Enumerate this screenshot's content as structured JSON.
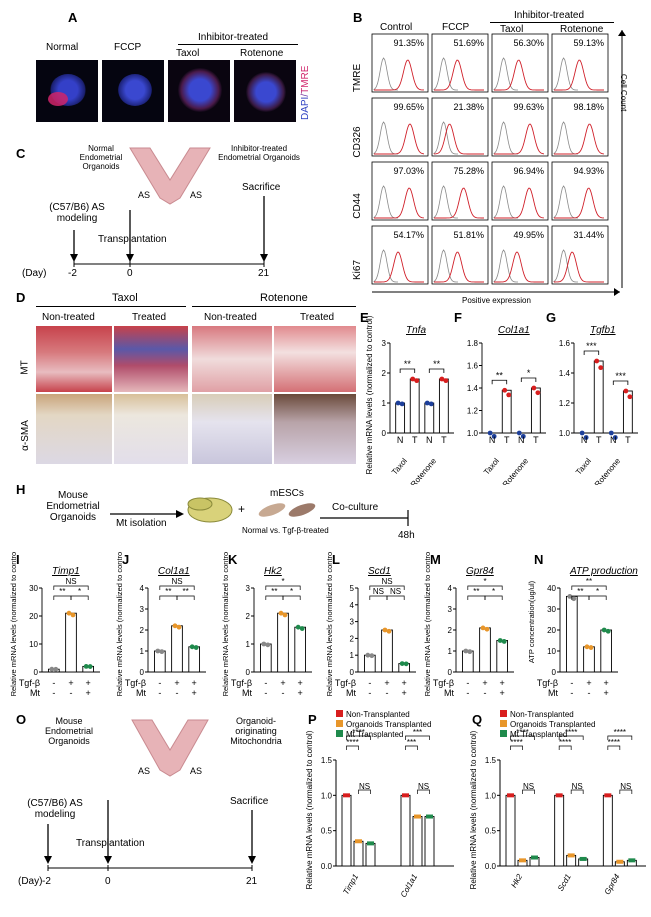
{
  "labels": [
    "A",
    "B",
    "C",
    "D",
    "E",
    "F",
    "G",
    "H",
    "I",
    "J",
    "K",
    "L",
    "M",
    "N",
    "O",
    "P",
    "Q"
  ],
  "panelA": {
    "images": [
      "Normal",
      "FCCP",
      "Taxol",
      "Rotenone"
    ],
    "group": "Inhibitor-treated",
    "stain": "DAPI/TMRE"
  },
  "panelB": {
    "columns": [
      "Control",
      "FCCP",
      "Taxol",
      "Rotenone"
    ],
    "group": "Inhibitor-treated",
    "rows": [
      {
        "marker": "TMRE",
        "values": [
          "91.35%",
          "51.69%",
          "56.30%",
          "59.13%"
        ]
      },
      {
        "marker": "CD326",
        "values": [
          "99.65%",
          "21.38%",
          "99.63%",
          "98.18%"
        ]
      },
      {
        "marker": "CD44",
        "values": [
          "97.03%",
          "75.28%",
          "96.94%",
          "94.93%"
        ]
      },
      {
        "marker": "Ki67",
        "values": [
          "54.17%",
          "51.81%",
          "49.95%",
          "31.44%"
        ]
      }
    ],
    "y_axis": "Cell Count",
    "x_axis": "Positive expression"
  },
  "panelC": {
    "left_label": "Normal Endometrial Organoids",
    "right_label": "Inhibitor-treated Endometrial Organoids",
    "as": "AS",
    "model": "(C57/B6) AS modeling",
    "transplant": "Transplantation",
    "sacrifice": "Sacrifice",
    "day_label": "(Day)",
    "days": [
      "-2",
      "0",
      "21"
    ]
  },
  "panelD": {
    "groups": [
      "Taxol",
      "Rotenone"
    ],
    "cols": [
      "Non-treated",
      "Treated",
      "Non-treated",
      "Treated"
    ],
    "rows": [
      "MT",
      "α-SMA"
    ]
  },
  "chartsEFG": {
    "ylabel": "Relative mRNA levels (normalized to control)",
    "charts": [
      {
        "id": "E",
        "gene": "Tnfa",
        "ticks": [
          "0",
          "1",
          "2",
          "3"
        ],
        "ymax": 3,
        "values": [
          1,
          1.8,
          1,
          1.8
        ],
        "sig": [
          "**",
          "**"
        ]
      },
      {
        "id": "F",
        "gene": "Col1a1",
        "ticks": [
          "1.0",
          "1.2",
          "1.4",
          "1.6",
          "1.8"
        ],
        "ymin": 1,
        "ymax": 1.8,
        "values": [
          1,
          1.38,
          1,
          1.4
        ],
        "sig": [
          "**",
          "*"
        ]
      },
      {
        "id": "G",
        "gene": "Tgfb1",
        "ticks": [
          "1.0",
          "1.2",
          "1.4",
          "1.6"
        ],
        "ymin": 1,
        "ymax": 1.6,
        "values": [
          1,
          1.48,
          1,
          1.28
        ],
        "sig": [
          "***",
          "***"
        ]
      }
    ],
    "xcats": [
      "N",
      "T",
      "N",
      "T"
    ],
    "groups": [
      "Taxol",
      "Rotenone"
    ]
  },
  "panelH": {
    "source": "Mouse Endometrial Organoids",
    "isolation": "Mt isolation",
    "cells": "mESCs",
    "coculture": "Co-culture",
    "plus": "+",
    "compare": "Normal  vs.  Tgf-β-treated",
    "time": "48h"
  },
  "chartsIN": {
    "ylabel": "Relative mRNA levels (normalized to control)",
    "row_labels": [
      "Tgf-β",
      "Mt"
    ],
    "treat": [
      [
        "-",
        "+",
        "+"
      ],
      [
        "-",
        "-",
        "+"
      ]
    ],
    "charts": [
      {
        "id": "I",
        "gene": "Timp1",
        "ticks": [
          "0",
          "10",
          "20",
          "30"
        ],
        "ymax": 30,
        "values": [
          1,
          21,
          2
        ],
        "sig": [
          "NS",
          "**",
          "*"
        ]
      },
      {
        "id": "J",
        "gene": "Col1a1",
        "ticks": [
          "0",
          "1",
          "2",
          "3",
          "4"
        ],
        "ymax": 4,
        "values": [
          1,
          2.2,
          1.2
        ],
        "sig": [
          "NS",
          "**",
          "**"
        ]
      },
      {
        "id": "K",
        "gene": "Hk2",
        "ticks": [
          "0",
          "1",
          "2",
          "3"
        ],
        "ymax": 3,
        "values": [
          1,
          2.1,
          1.6
        ],
        "sig": [
          "*",
          "**",
          "*"
        ]
      },
      {
        "id": "L",
        "gene": "Scd1",
        "ticks": [
          "0",
          "1",
          "2",
          "3",
          "4",
          "5"
        ],
        "ymax": 5,
        "values": [
          1,
          2.5,
          0.5
        ],
        "sig": [
          "NS",
          "NS",
          "NS"
        ]
      },
      {
        "id": "M",
        "gene": "Gpr84",
        "ticks": [
          "0",
          "1",
          "2",
          "3",
          "4"
        ],
        "ymax": 4,
        "values": [
          1,
          2.1,
          1.5
        ],
        "sig": [
          "*",
          "**",
          "*"
        ]
      },
      {
        "id": "N",
        "gene": "ATP production",
        "ylabel": "ATP concentration(ug/ul)",
        "ticks": [
          "0",
          "10",
          "20",
          "30",
          "40"
        ],
        "ymax": 40,
        "values": [
          36,
          12,
          20
        ],
        "sig": [
          "**",
          "**",
          "*"
        ]
      }
    ]
  },
  "panelO": {
    "source": "Mouse Endometrial Organoids",
    "right_label": "Organoid-originating Mitochondria",
    "as": "AS",
    "model": "(C57/B6) AS modeling",
    "transplant": "Transplantation",
    "sacrifice": "Sacrifice",
    "day_label": "(Day)",
    "days": [
      "-2",
      "0",
      "21"
    ]
  },
  "chartsPQ": {
    "ylabel": "Relative mRNA levels (normalized to control)",
    "legend": [
      "Non-Transplanted",
      "Organoids Transplanted",
      "Mt Transplanted"
    ],
    "colors": {
      "non": "#d81e1e",
      "org": "#e8962a",
      "mt": "#1f8a4c"
    },
    "P": {
      "ticks": [
        "0.0",
        "0.5",
        "1.0",
        "1.5"
      ],
      "ymax": 1.5,
      "genes": [
        "Timp1",
        "Col1a1"
      ],
      "values": [
        [
          1,
          0.35,
          0.32
        ],
        [
          1,
          0.7,
          0.7
        ]
      ],
      "sig": [
        "****",
        "****",
        "NS",
        "***",
        "***",
        "NS"
      ]
    },
    "Q": {
      "ticks": [
        "0.0",
        "0.5",
        "1.0",
        "1.5"
      ],
      "ymax": 1.5,
      "genes": [
        "Hk2",
        "Scd1",
        "Gpr84"
      ],
      "values": [
        [
          1,
          0.08,
          0.12
        ],
        [
          1,
          0.15,
          0.1
        ],
        [
          1,
          0.06,
          0.08
        ]
      ],
      "sig": [
        "****",
        "****",
        "NS",
        "****",
        "****",
        "NS",
        "****",
        "****",
        "NS"
      ]
    }
  }
}
